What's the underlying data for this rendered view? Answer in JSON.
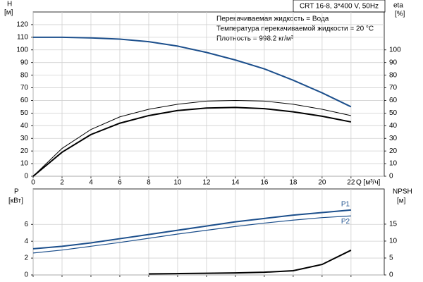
{
  "chart_data": [
    {
      "type": "line",
      "title": "CRT 16-8, 3*400 V, 50Hz",
      "annotations": [
        "Перекачиваемая жидкость = Вода",
        "Температура перекачиваемой жидкости = 20 °C",
        "Плотность = 998.2 кг/м³"
      ],
      "ylabel": "H",
      "yunit": "[м]",
      "y2label": "eta",
      "y2unit": "[%]",
      "xlabel": "Q [м³/ч]",
      "x": [
        0,
        2,
        4,
        6,
        8,
        10,
        12,
        14,
        16,
        18,
        20,
        22
      ],
      "xlim": [
        0,
        24.3
      ],
      "xticks": [
        0,
        2,
        4,
        6,
        8,
        10,
        12,
        14,
        16,
        18,
        20,
        22
      ],
      "ylim": [
        0,
        130
      ],
      "yticks": [
        0,
        10,
        20,
        30,
        40,
        50,
        60,
        70,
        80,
        90,
        100,
        110,
        120
      ],
      "y2lim": [
        0,
        130
      ],
      "y2ticks": [
        0,
        10,
        20,
        30,
        40,
        50,
        60,
        70,
        80,
        90,
        100
      ],
      "grid": true,
      "series": [
        {
          "color": "#1c4f8c",
          "width": 2,
          "values": [
            110,
            110,
            109.5,
            108.5,
            106.5,
            103,
            98,
            92,
            85,
            76,
            66,
            55
          ]
        },
        {
          "color": "#000000",
          "width": 1,
          "axis": "y2",
          "values": [
            0,
            22,
            37,
            47,
            53,
            57,
            59.5,
            60,
            59.5,
            57,
            53,
            48
          ]
        },
        {
          "color": "#000000",
          "width": 2,
          "axis": "y2",
          "values": [
            0,
            19,
            33,
            42,
            48,
            52,
            54,
            54.5,
            53.5,
            51,
            47.5,
            43
          ]
        }
      ]
    },
    {
      "type": "line",
      "ylabel": "P",
      "yunit": "[кВт]",
      "y2label": "NPSH",
      "y2unit": "[м]",
      "x": [
        0,
        2,
        4,
        6,
        8,
        10,
        12,
        14,
        16,
        18,
        20,
        22
      ],
      "xlim": [
        0,
        24.3
      ],
      "ylim": [
        0,
        10.2
      ],
      "yticks": [
        0,
        2,
        4,
        6
      ],
      "y2lim": [
        0,
        25.4
      ],
      "y2ticks": [
        0,
        5,
        10,
        15
      ],
      "grid": true,
      "series": [
        {
          "name": "P1",
          "color": "#1c4f8c",
          "width": 2,
          "values": [
            3.1,
            3.4,
            3.8,
            4.3,
            4.8,
            5.3,
            5.8,
            6.3,
            6.7,
            7.1,
            7.4,
            7.7
          ]
        },
        {
          "name": "P2",
          "color": "#1c4f8c",
          "width": 1.2,
          "values": [
            2.6,
            2.95,
            3.4,
            3.85,
            4.35,
            4.85,
            5.3,
            5.75,
            6.15,
            6.5,
            6.8,
            7.0
          ]
        },
        {
          "color": "#000000",
          "width": 2,
          "axis": "y2",
          "values": [
            null,
            null,
            null,
            null,
            0.3,
            0.4,
            0.5,
            0.6,
            0.8,
            1.25,
            3.1,
            7.3
          ]
        }
      ]
    }
  ]
}
